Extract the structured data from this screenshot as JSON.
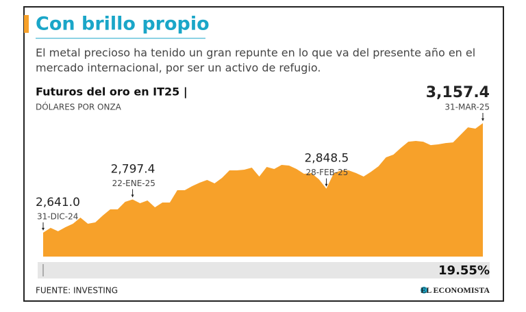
{
  "title": "Con brillo propio",
  "subtitle": [
    "El metal precioso ha tenido un gran repunte en lo que va del presente año en el",
    "mercado internacional, por ser un activo de refugio."
  ],
  "chart_data": {
    "type": "area",
    "title": "Futuros del oro en IT25 |",
    "subtitle": "DÓLARES POR ONZA",
    "color": "#f7a12a",
    "categories": [
      "31-DIC-24",
      null,
      null,
      null,
      null,
      null,
      null,
      null,
      null,
      null,
      null,
      null,
      "22-ENE-25",
      null,
      null,
      null,
      null,
      null,
      null,
      null,
      null,
      null,
      null,
      null,
      null,
      null,
      null,
      null,
      null,
      null,
      null,
      null,
      null,
      null,
      null,
      null,
      null,
      null,
      "28-FEB-25",
      null,
      null,
      null,
      null,
      null,
      null,
      null,
      null,
      null,
      null,
      null,
      null,
      null,
      null,
      null,
      null,
      null,
      null,
      null,
      null,
      "31-MAR-25"
    ],
    "values": [
      2641.0,
      2663.6,
      2647.5,
      2666.8,
      2683.0,
      2712.0,
      2683.0,
      2689.4,
      2721.7,
      2750.7,
      2750.7,
      2786.2,
      2797.4,
      2779.7,
      2792.6,
      2760.4,
      2783.0,
      2783.0,
      2841.0,
      2841.0,
      2860.4,
      2876.5,
      2889.4,
      2873.3,
      2899.1,
      2934.6,
      2934.6,
      2937.8,
      2947.5,
      2905.5,
      2950.7,
      2941.0,
      2960.4,
      2957.1,
      2941.0,
      2918.4,
      2921.7,
      2892.6,
      2848.5,
      2921.7,
      2934.6,
      2934.6,
      2921.7,
      2905.5,
      2928.1,
      2953.9,
      2995.9,
      3008.8,
      3041.0,
      3070.0,
      3073.3,
      3070.0,
      3053.9,
      3057.2,
      3063.6,
      3066.8,
      3102.3,
      3137.8,
      3131.4,
      3157.4
    ],
    "value_labels": [
      "2,641.0",
      null,
      null,
      null,
      null,
      null,
      null,
      null,
      null,
      null,
      null,
      null,
      "2,797.4",
      null,
      null,
      null,
      null,
      null,
      null,
      null,
      null,
      null,
      null,
      null,
      null,
      null,
      null,
      null,
      null,
      null,
      null,
      null,
      null,
      null,
      null,
      null,
      null,
      null,
      "2,848.5",
      null,
      null,
      null,
      null,
      null,
      null,
      null,
      null,
      null,
      null,
      null,
      null,
      null,
      null,
      null,
      null,
      null,
      null,
      null,
      null,
      "3,157.4"
    ],
    "change": {
      "value": 19.55,
      "label": "19.55%"
    }
  },
  "source": "FUENTE: INVESTING",
  "brand": "EL ECONOMISTA"
}
